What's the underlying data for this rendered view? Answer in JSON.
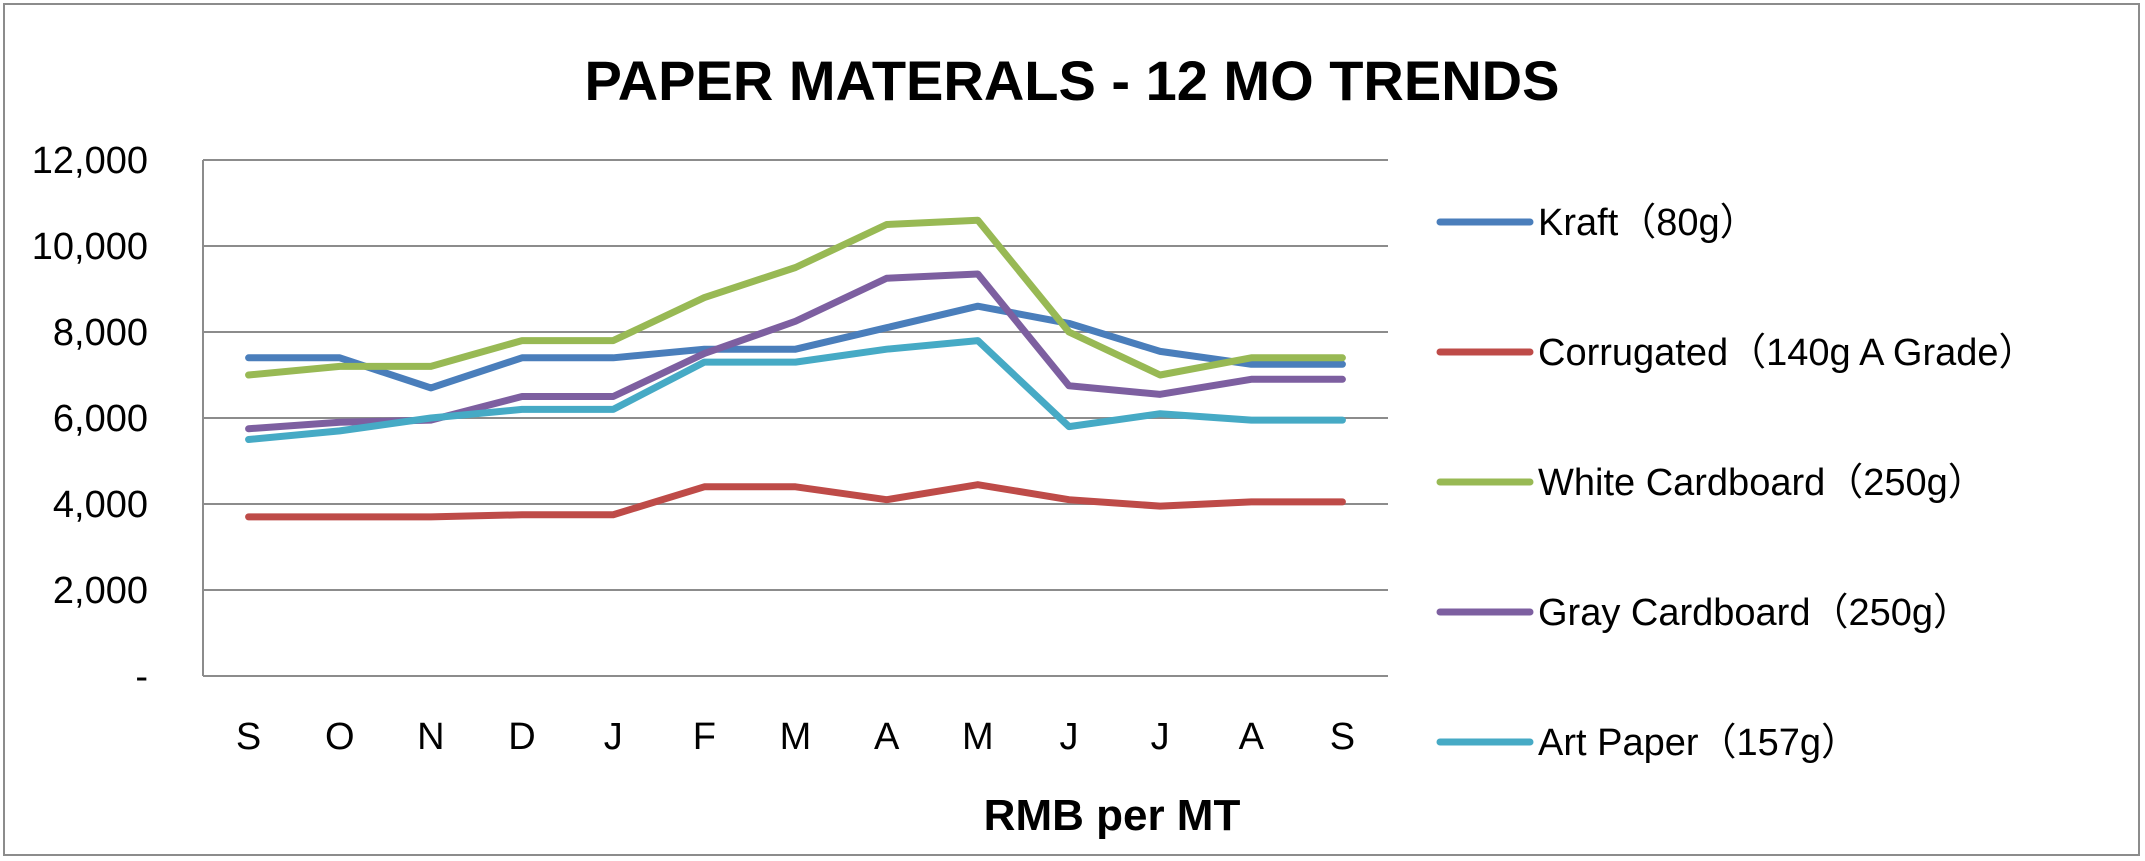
{
  "chart_data": {
    "type": "line",
    "title": "PAPER MATERALS - 12 MO TRENDS",
    "xlabel": "RMB per MT",
    "ylabel": "",
    "categories": [
      "S",
      "O",
      "N",
      "D",
      "J",
      "F",
      "M",
      "A",
      "M",
      "J",
      "J",
      "A",
      "S"
    ],
    "ylim": [
      0,
      12000
    ],
    "yticks": [
      0,
      2000,
      4000,
      6000,
      8000,
      10000,
      12000
    ],
    "ytick_labels": [
      "-",
      "2,000",
      "4,000",
      "6,000",
      "8,000",
      "10,000",
      "12,000"
    ],
    "grid": true,
    "legend_position": "right",
    "series": [
      {
        "name": "Kraft（80g）",
        "color": "#4a7ebb",
        "values": [
          7400,
          7400,
          6700,
          7400,
          7400,
          7600,
          7600,
          8100,
          8600,
          8200,
          7550,
          7250,
          7250
        ]
      },
      {
        "name": "Corrugated（140g A Grade）",
        "color": "#be4b48",
        "values": [
          3700,
          3700,
          3700,
          3750,
          3750,
          4400,
          4400,
          4100,
          4450,
          4100,
          3950,
          4050,
          4050
        ]
      },
      {
        "name": "White Cardboard（250g）",
        "color": "#98b954",
        "values": [
          7000,
          7200,
          7200,
          7800,
          7800,
          8800,
          9500,
          10500,
          10600,
          8000,
          7000,
          7400,
          7400
        ]
      },
      {
        "name": "Gray Cardboard（250g）",
        "color": "#7d5fa0",
        "values": [
          5750,
          5900,
          5950,
          6500,
          6500,
          7500,
          8250,
          9250,
          9350,
          6750,
          6550,
          6900,
          6900
        ]
      },
      {
        "name": "Art Paper（157g）",
        "color": "#46aac5",
        "values": [
          5500,
          5700,
          6000,
          6200,
          6200,
          7300,
          7300,
          7600,
          7800,
          5800,
          6100,
          5950,
          5950
        ]
      }
    ]
  }
}
